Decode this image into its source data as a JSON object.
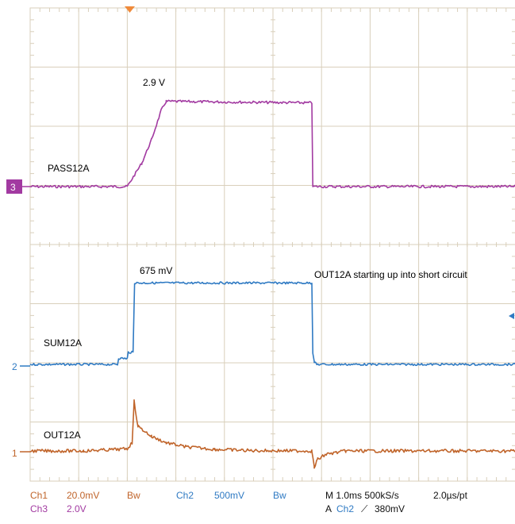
{
  "chart_data": {
    "type": "line",
    "title": "",
    "annotation": "OUT12A starting up into short circuit",
    "grid": true,
    "x": {
      "unit": "ms",
      "div": 1.0,
      "range": [
        0,
        10
      ]
    },
    "series": [
      {
        "name": "PASS12A",
        "channel": "Ch3",
        "marker": "3",
        "color": "#a23aa1",
        "scale": "2.0V",
        "peak_label": "2.9 V",
        "points": [
          [
            0,
            0
          ],
          [
            2.0,
            0
          ],
          [
            2.3,
            0.8
          ],
          [
            2.5,
            1.6
          ],
          [
            2.7,
            2.6
          ],
          [
            2.8,
            2.9
          ],
          [
            5.8,
            2.85
          ],
          [
            5.82,
            0
          ],
          [
            10,
            0
          ]
        ]
      },
      {
        "name": "SUM12A",
        "channel": "Ch2",
        "marker": "2",
        "color": "#2f7ac3",
        "scale": "500mV",
        "peak_label": "675 mV",
        "points": [
          [
            0,
            0
          ],
          [
            1.8,
            0
          ],
          [
            1.82,
            0.05
          ],
          [
            2.0,
            0.05
          ],
          [
            2.02,
            0.1
          ],
          [
            2.12,
            0.1
          ],
          [
            2.15,
            0.675
          ],
          [
            5.8,
            0.675
          ],
          [
            5.82,
            0.1
          ],
          [
            5.85,
            0.02
          ],
          [
            5.9,
            0
          ],
          [
            10,
            0
          ]
        ]
      },
      {
        "name": "OUT12A",
        "channel": "Ch1",
        "marker": "1",
        "color": "#c0642a",
        "scale": "20.0mV",
        "points": [
          [
            0,
            0
          ],
          [
            1.1,
            0
          ],
          [
            2.0,
            0.5
          ],
          [
            2.1,
            2.0
          ],
          [
            2.14,
            12.0
          ],
          [
            2.22,
            6.0
          ],
          [
            2.5,
            3.5
          ],
          [
            2.8,
            2.0
          ],
          [
            3.2,
            1.0
          ],
          [
            3.8,
            0.4
          ],
          [
            4.5,
            0.1
          ],
          [
            5.8,
            0
          ],
          [
            5.85,
            -4.0
          ],
          [
            5.92,
            -2.0
          ],
          [
            6.1,
            -0.8
          ],
          [
            6.5,
            0
          ],
          [
            10,
            0
          ]
        ]
      }
    ]
  },
  "readout": {
    "ch1_label": "Ch1",
    "ch1_scale": "20.0mV",
    "ch1_bw": "Bw",
    "ch2_label": "Ch2",
    "ch2_scale": "500mV",
    "ch2_bw": "Bw",
    "ch3_label": "Ch3",
    "ch3_scale": "2.0V",
    "timebase": "M 1.0ms 500kS/s",
    "record": "2.0µs/pt",
    "trigger_prefix": "A",
    "trigger_channel": "Ch2",
    "trigger_level": "380mV"
  },
  "colors": {
    "grid": "#d9cfbb",
    "ch1": "#c0642a",
    "ch2": "#2f7ac3",
    "ch3": "#a23aa1",
    "trigger_marker": "#f08a3a"
  }
}
